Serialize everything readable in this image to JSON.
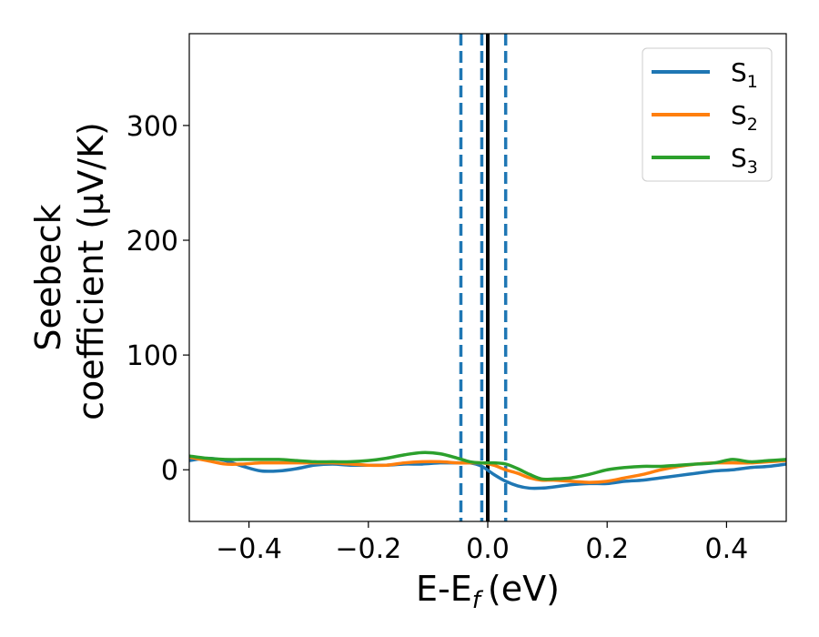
{
  "chart_data": {
    "type": "line",
    "xlabel": "E-E",
    "xlabel_sub": "f",
    "xlabel_unit": "(eV)",
    "ylabel_line1": "Seebeck",
    "ylabel_line2": "coefficient  (μV/K)",
    "xlim": [
      -0.5,
      0.5
    ],
    "ylim": [
      -45,
      380
    ],
    "xticks": [
      -0.4,
      -0.2,
      0.0,
      0.2,
      0.4
    ],
    "xtick_labels": [
      "−0.4",
      "−0.2",
      "0.0",
      "0.2",
      "0.4"
    ],
    "yticks": [
      0,
      100,
      200,
      300
    ],
    "ytick_labels": [
      "0",
      "100",
      "200",
      "300"
    ],
    "legend_position": "top-right",
    "grid": false,
    "vertical_lines": [
      {
        "x": -0.045,
        "style": "dashed",
        "color": "#1f77b4"
      },
      {
        "x": -0.01,
        "style": "dashed",
        "color": "#1f77b4"
      },
      {
        "x": 0.03,
        "style": "dashed",
        "color": "#1f77b4"
      },
      {
        "x": 0.0,
        "style": "solid",
        "color": "#000000"
      }
    ],
    "series": [
      {
        "name": "S",
        "sub": "1",
        "color": "#1f77b4",
        "x": [
          -0.5,
          -0.47,
          -0.44,
          -0.41,
          -0.38,
          -0.35,
          -0.32,
          -0.29,
          -0.26,
          -0.23,
          -0.2,
          -0.17,
          -0.14,
          -0.11,
          -0.08,
          -0.05,
          -0.03,
          -0.01,
          0.01,
          0.03,
          0.05,
          0.07,
          0.09,
          0.11,
          0.14,
          0.17,
          0.2,
          0.23,
          0.26,
          0.29,
          0.32,
          0.35,
          0.38,
          0.41,
          0.44,
          0.47,
          0.5
        ],
        "y": [
          8,
          10,
          8,
          3,
          -1,
          -1,
          1,
          4,
          5,
          4,
          4,
          4,
          5,
          5,
          6,
          6,
          6,
          3,
          -4,
          -10,
          -14,
          -16,
          -16,
          -15,
          -13,
          -12,
          -12,
          -10,
          -9,
          -7,
          -5,
          -3,
          -1,
          0,
          2,
          3,
          5
        ]
      },
      {
        "name": "S",
        "sub": "2",
        "color": "#ff7f0e",
        "x": [
          -0.5,
          -0.47,
          -0.44,
          -0.41,
          -0.38,
          -0.35,
          -0.32,
          -0.29,
          -0.26,
          -0.23,
          -0.2,
          -0.17,
          -0.14,
          -0.11,
          -0.08,
          -0.05,
          -0.03,
          -0.01,
          0.01,
          0.03,
          0.05,
          0.07,
          0.09,
          0.11,
          0.14,
          0.17,
          0.2,
          0.23,
          0.26,
          0.29,
          0.32,
          0.35,
          0.38,
          0.41,
          0.44,
          0.47,
          0.5
        ],
        "y": [
          11,
          8,
          5,
          5,
          6,
          6,
          6,
          6,
          6,
          5,
          4,
          4,
          6,
          7,
          7,
          6,
          6,
          6,
          4,
          0,
          -3,
          -7,
          -9,
          -9,
          -10,
          -11,
          -10,
          -7,
          -4,
          0,
          3,
          5,
          6,
          6,
          6,
          7,
          8
        ]
      },
      {
        "name": "S",
        "sub": "3",
        "color": "#2ca02c",
        "x": [
          -0.5,
          -0.47,
          -0.44,
          -0.41,
          -0.38,
          -0.35,
          -0.32,
          -0.29,
          -0.26,
          -0.23,
          -0.2,
          -0.17,
          -0.14,
          -0.11,
          -0.08,
          -0.05,
          -0.03,
          -0.01,
          0.01,
          0.03,
          0.05,
          0.07,
          0.09,
          0.11,
          0.14,
          0.17,
          0.2,
          0.23,
          0.26,
          0.29,
          0.32,
          0.35,
          0.38,
          0.41,
          0.44,
          0.47,
          0.5
        ],
        "y": [
          12,
          10,
          9,
          9,
          9,
          9,
          8,
          7,
          7,
          7,
          8,
          10,
          13,
          15,
          14,
          10,
          7,
          6,
          6,
          5,
          1,
          -4,
          -8,
          -8,
          -7,
          -4,
          0,
          2,
          3,
          3,
          4,
          5,
          6,
          9,
          7,
          8,
          9
        ]
      }
    ]
  }
}
